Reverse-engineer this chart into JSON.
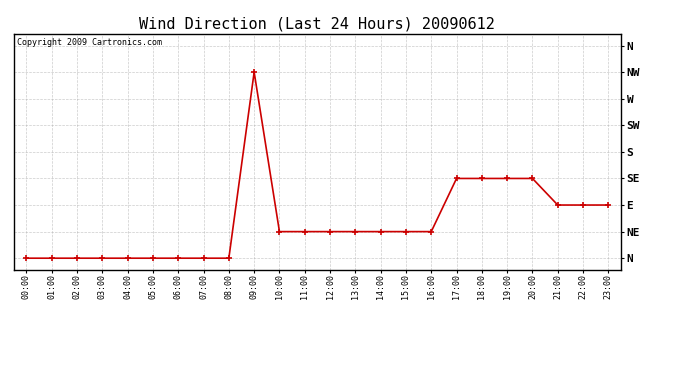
{
  "title": "Wind Direction (Last 24 Hours) 20090612",
  "copyright": "Copyright 2009 Cartronics.com",
  "hours": [
    0,
    1,
    2,
    3,
    4,
    5,
    6,
    7,
    8,
    9,
    10,
    11,
    12,
    13,
    14,
    15,
    16,
    17,
    18,
    19,
    20,
    21,
    22,
    23
  ],
  "hour_labels": [
    "00:00",
    "01:00",
    "02:00",
    "03:00",
    "04:00",
    "05:00",
    "06:00",
    "07:00",
    "08:00",
    "09:00",
    "10:00",
    "11:00",
    "12:00",
    "13:00",
    "14:00",
    "15:00",
    "16:00",
    "17:00",
    "18:00",
    "19:00",
    "20:00",
    "21:00",
    "22:00",
    "23:00"
  ],
  "values": [
    0,
    0,
    0,
    0,
    0,
    0,
    0,
    0,
    0,
    315,
    45,
    45,
    45,
    45,
    45,
    45,
    45,
    135,
    135,
    135,
    135,
    90,
    90,
    90
  ],
  "yticks": [
    360,
    315,
    270,
    225,
    180,
    135,
    90,
    45,
    0
  ],
  "ylabels": [
    "N",
    "NW",
    "W",
    "SW",
    "S",
    "SE",
    "E",
    "NE",
    "N"
  ],
  "line_color": "#cc0000",
  "marker_color": "#cc0000",
  "bg_color": "#ffffff",
  "grid_color": "#aaaaaa",
  "title_fontsize": 11,
  "copyright_fontsize": 6,
  "ylabel_fontsize": 8,
  "xlabel_fontsize": 6
}
